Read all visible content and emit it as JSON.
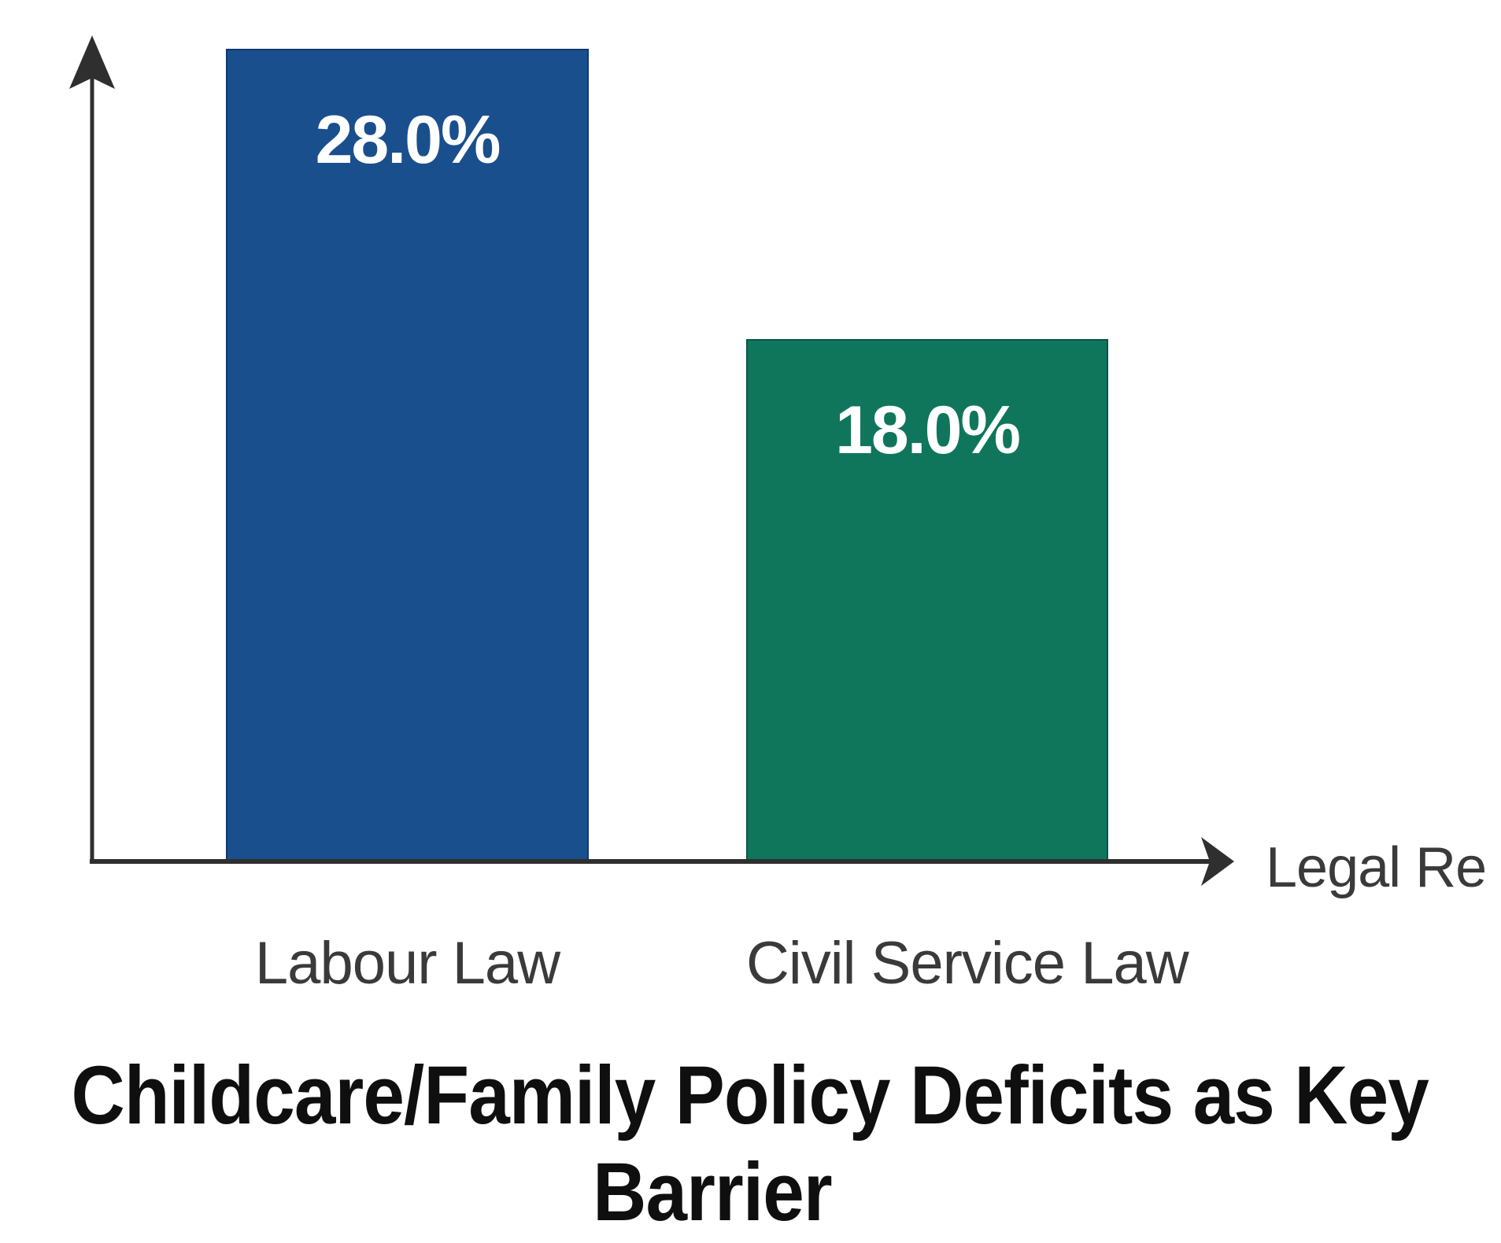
{
  "chart_data": {
    "type": "bar",
    "title": "Childcare/Family Policy Deficits as Key Barrier",
    "xlabel": "Legal Re",
    "ylabel": "",
    "categories": [
      "Labour Law",
      "Civil Service Law"
    ],
    "values": [
      28.0,
      18.0
    ],
    "value_labels": [
      "28.0%",
      "18.0%"
    ],
    "bar_colors": [
      "#1a4f8d",
      "#0f765c"
    ],
    "value_label_color": "#ffffff",
    "axis_color": "#2f2f2f",
    "category_label_color": "#3a3a3a",
    "title_color": "#0f0f0f",
    "background_color": "#ffffff",
    "ylim": [
      0,
      28.4
    ],
    "grid": false,
    "legend": false,
    "x_axis_arrow": true,
    "y_axis_arrow": true
  },
  "title": {
    "lines": [
      "Childcare/Family Policy Deficits as Key",
      "Barrier"
    ]
  }
}
